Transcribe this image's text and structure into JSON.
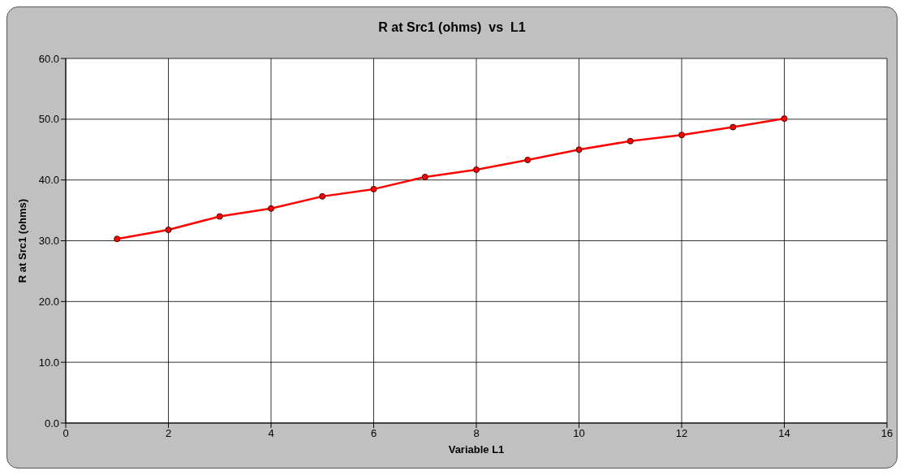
{
  "chart_data": {
    "type": "line",
    "title": "R at Src1 (ohms)  vs  L1",
    "xlabel": "Variable L1",
    "ylabel": "R at Src1 (ohms)",
    "x": [
      1,
      2,
      3,
      4,
      5,
      6,
      7,
      8,
      9,
      10,
      11,
      12,
      13,
      14
    ],
    "series": [
      {
        "color": "#ff0000",
        "values": [
          30.3,
          31.8,
          34.0,
          35.3,
          37.3,
          38.5,
          40.5,
          41.7,
          43.3,
          45.0,
          46.4,
          47.4,
          48.7,
          50.1
        ]
      }
    ],
    "xlim": [
      0,
      16
    ],
    "xticks": [
      0,
      2,
      4,
      6,
      8,
      10,
      12,
      14,
      16
    ],
    "ylim": [
      0,
      60
    ],
    "yticks": [
      {
        "value": 0,
        "label": "0.0"
      },
      {
        "value": 10,
        "label": "10.0"
      },
      {
        "value": 20,
        "label": "20.0"
      },
      {
        "value": 30,
        "label": "30.0"
      },
      {
        "value": 40,
        "label": "40.0"
      },
      {
        "value": 50,
        "label": "50.0"
      },
      {
        "value": 60,
        "label": "60.0"
      }
    ],
    "grid": true,
    "marker": "circle",
    "line_style": "solid"
  }
}
